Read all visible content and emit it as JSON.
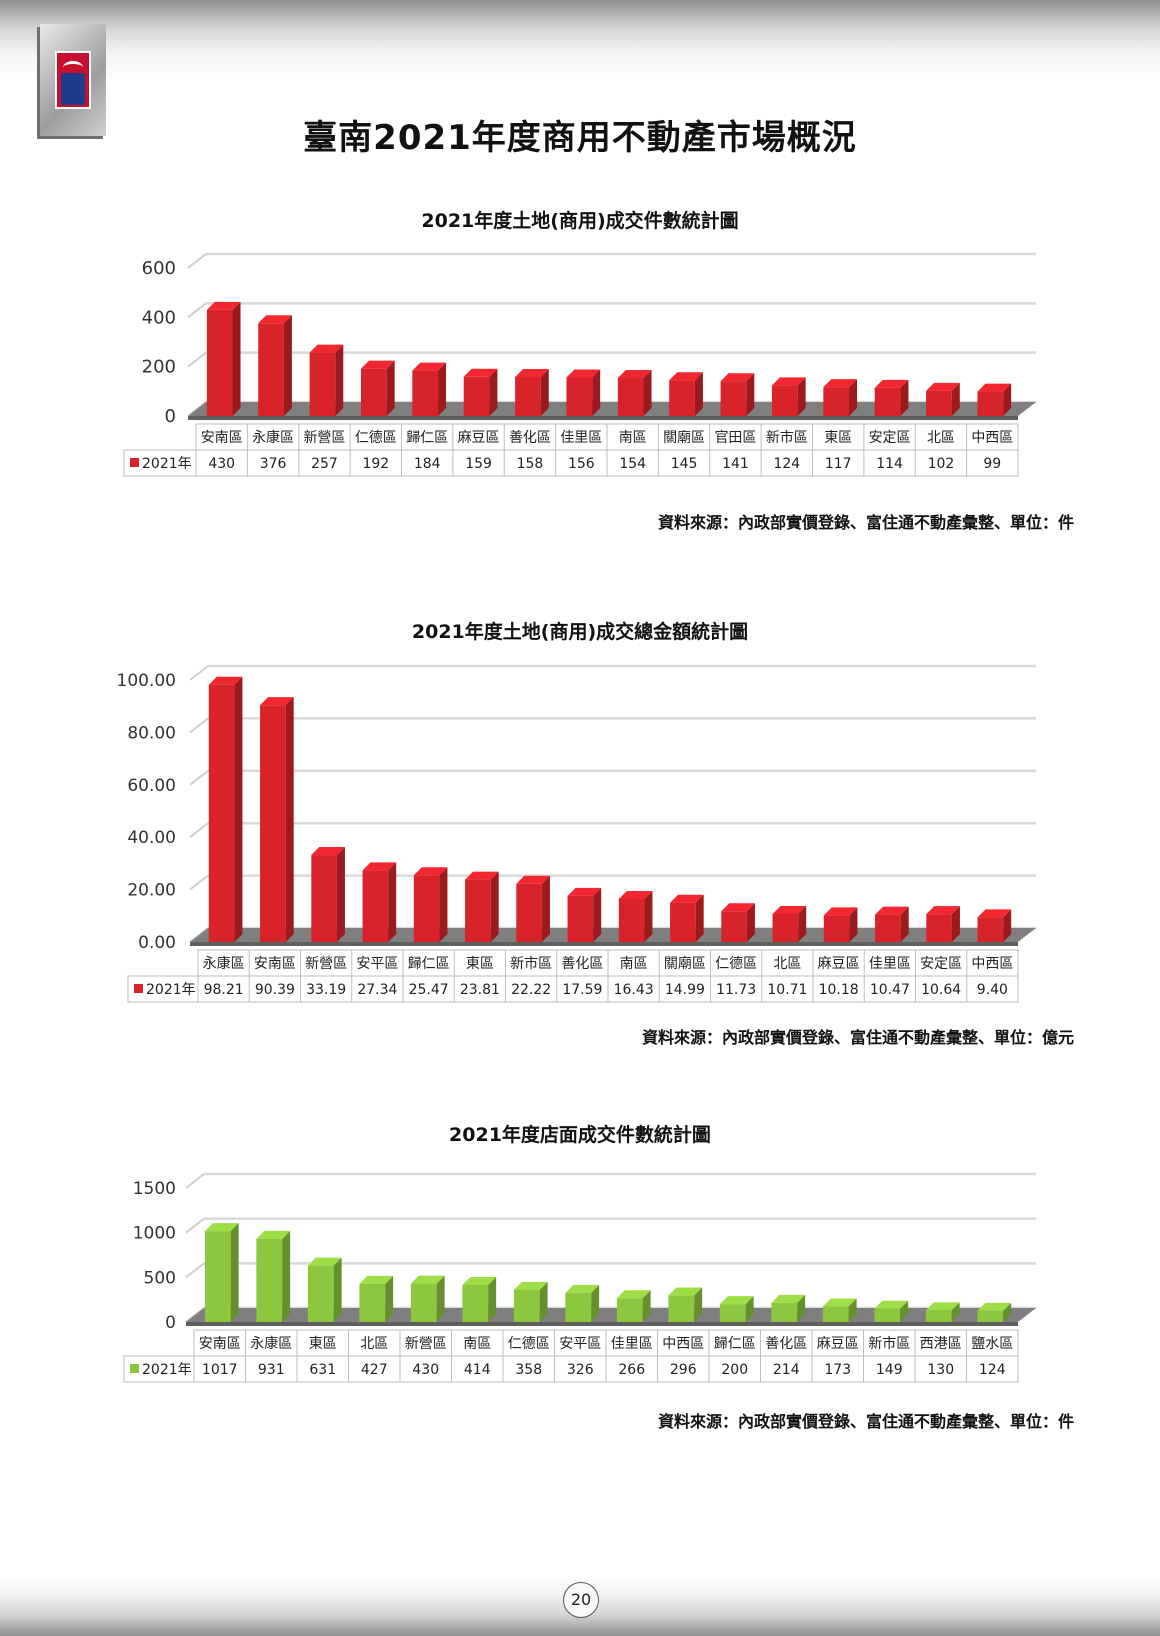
{
  "page_title": "臺南2021年度商用不動產市場概況",
  "page_number": "20",
  "colors": {
    "red": "#d8232a",
    "green": "#8dc63f"
  },
  "chart_data": [
    {
      "type": "bar",
      "title": "2021年度土地(商用)成交件數統計圖",
      "series_name": "2021年",
      "color": "#d8232a",
      "categories": [
        "安南區",
        "永康區",
        "新營區",
        "仁德區",
        "歸仁區",
        "麻豆區",
        "善化區",
        "佳里區",
        "南區",
        "關廟區",
        "官田區",
        "新市區",
        "東區",
        "安定區",
        "北區",
        "中西區"
      ],
      "values": [
        430,
        376,
        257,
        192,
        184,
        159,
        158,
        156,
        154,
        145,
        141,
        124,
        117,
        114,
        102,
        99
      ],
      "value_labels": [
        "430",
        "376",
        "257",
        "192",
        "184",
        "159",
        "158",
        "156",
        "154",
        "145",
        "141",
        "124",
        "117",
        "114",
        "102",
        "99"
      ],
      "yticks": [
        "0",
        "200",
        "400",
        "600"
      ],
      "ylim": [
        0,
        600
      ],
      "source": "資料來源：內政部實價登錄、富住通不動產彙整、單位：件"
    },
    {
      "type": "bar",
      "title": "2021年度土地(商用)成交總金額統計圖",
      "series_name": "2021年",
      "color": "#d8232a",
      "categories": [
        "永康區",
        "安南區",
        "新營區",
        "安平區",
        "歸仁區",
        "東區",
        "新市區",
        "善化區",
        "南區",
        "關廟區",
        "仁德區",
        "北區",
        "麻豆區",
        "佳里區",
        "安定區",
        "中西區"
      ],
      "values": [
        98.21,
        90.39,
        33.19,
        27.34,
        25.47,
        23.81,
        22.22,
        17.59,
        16.43,
        14.99,
        11.73,
        10.71,
        10.18,
        10.47,
        10.64,
        9.4
      ],
      "value_labels": [
        "98.21",
        "90.39",
        "33.19",
        "27.34",
        "25.47",
        "23.81",
        "22.22",
        "17.59",
        "16.43",
        "14.99",
        "11.73",
        "10.71",
        "10.18",
        "10.47",
        "10.64",
        "9.40"
      ],
      "yticks": [
        "0.00",
        "20.00",
        "40.00",
        "60.00",
        "80.00",
        "100.00"
      ],
      "ylim": [
        0,
        100
      ],
      "source": "資料來源：內政部實價登錄、富住通不動產彙整、單位：億元"
    },
    {
      "type": "bar",
      "title": "2021年度店面成交件數統計圖",
      "series_name": "2021年",
      "color": "#8dc63f",
      "categories": [
        "安南區",
        "永康區",
        "東區",
        "北區",
        "新營區",
        "南區",
        "仁德區",
        "安平區",
        "佳里區",
        "中西區",
        "歸仁區",
        "善化區",
        "麻豆區",
        "新市區",
        "西港區",
        "鹽水區"
      ],
      "values": [
        1017,
        931,
        631,
        427,
        430,
        414,
        358,
        326,
        266,
        296,
        200,
        214,
        173,
        149,
        130,
        124
      ],
      "value_labels": [
        "1017",
        "931",
        "631",
        "427",
        "430",
        "414",
        "358",
        "326",
        "266",
        "296",
        "200",
        "214",
        "173",
        "149",
        "130",
        "124"
      ],
      "yticks": [
        "0",
        "500",
        "1000",
        "1500"
      ],
      "ylim": [
        0,
        1500
      ],
      "source": "資料來源：內政部實價登錄、富住通不動產彙整、單位：件"
    }
  ]
}
